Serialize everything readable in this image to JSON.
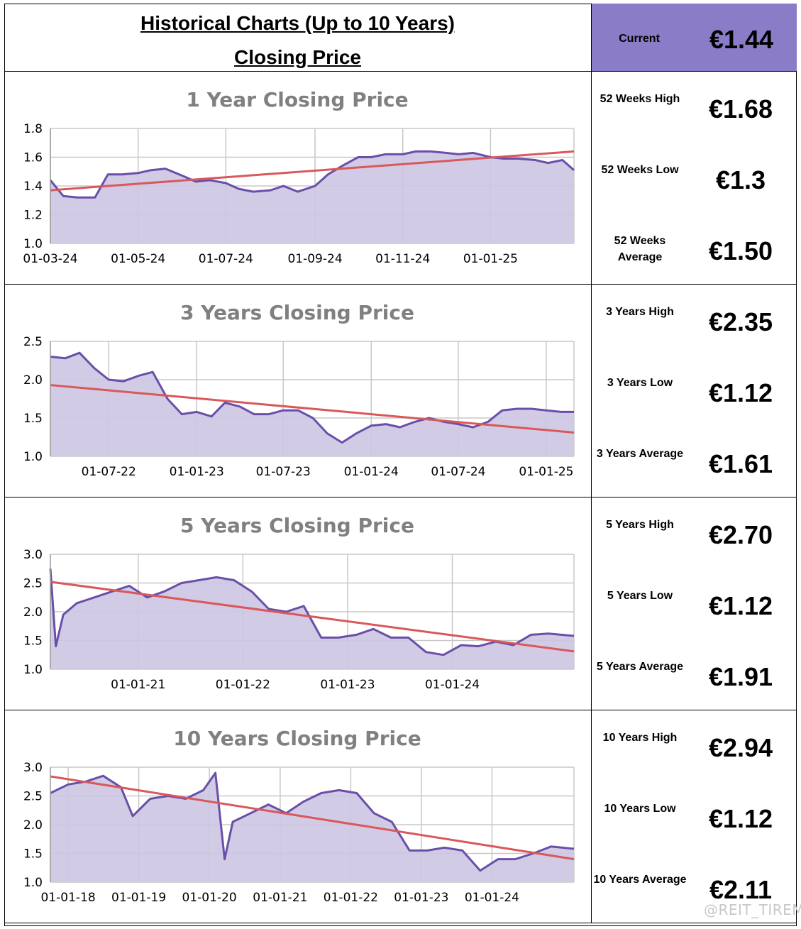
{
  "header": {
    "title": "Historical Charts (Up to 10 Years)",
    "subtitle": "Closing Price",
    "current_label": "Current",
    "current_value": "€1.44",
    "current_bg": "#8b7cc8"
  },
  "sections": [
    {
      "stats": [
        {
          "label": "52 Weeks High",
          "value": "€1.68"
        },
        {
          "label": "52 Weeks Low",
          "value": "€1.3"
        },
        {
          "label": "52 Weeks Average",
          "value": "€1.50"
        }
      ]
    },
    {
      "stats": [
        {
          "label": "3 Years High",
          "value": "€2.35"
        },
        {
          "label": "3 Years Low",
          "value": "€1.12"
        },
        {
          "label": "3 Years Average",
          "value": "€1.61"
        }
      ]
    },
    {
      "stats": [
        {
          "label": "5 Years High",
          "value": "€2.70"
        },
        {
          "label": "5 Years Low",
          "value": "€1.12"
        },
        {
          "label": "5 Years Average",
          "value": "€1.91"
        }
      ]
    },
    {
      "stats": [
        {
          "label": "10 Years High",
          "value": "€2.94"
        },
        {
          "label": "10 Years Low",
          "value": "€1.12"
        },
        {
          "label": "10 Years Average",
          "value": "€2.11"
        }
      ]
    }
  ],
  "watermark": "@REIT_TIREMENT",
  "colors": {
    "line": "#6a4fa8",
    "fill": "#cdc5e3",
    "trend": "#d9585b",
    "grid": "#c8c8c8",
    "title": "#808080"
  },
  "chart_data": [
    {
      "type": "area",
      "title": "1 Year Closing Price",
      "xlim": [
        "2024-03-01",
        "2025-02-28"
      ],
      "ylim": [
        1.0,
        1.8
      ],
      "yticks": [
        1.0,
        1.2,
        1.4,
        1.6,
        1.8
      ],
      "xticks": [
        "01-03-24",
        "01-05-24",
        "01-07-24",
        "01-09-24",
        "01-11-24",
        "01-01-25"
      ],
      "xtick_dates": [
        "2024-03-01",
        "2024-05-01",
        "2024-07-01",
        "2024-09-01",
        "2024-11-01",
        "2025-01-01"
      ],
      "grid": true,
      "series": [
        {
          "x": [
            "2024-03-01",
            "2024-03-10",
            "2024-03-20",
            "2024-04-01",
            "2024-04-10",
            "2024-04-20",
            "2024-05-01",
            "2024-05-10",
            "2024-05-20",
            "2024-06-01",
            "2024-06-10",
            "2024-06-20",
            "2024-07-01",
            "2024-07-10",
            "2024-07-20",
            "2024-08-01",
            "2024-08-10",
            "2024-08-20",
            "2024-09-01",
            "2024-09-10",
            "2024-09-20",
            "2024-10-01",
            "2024-10-10",
            "2024-10-20",
            "2024-11-01",
            "2024-11-10",
            "2024-11-20",
            "2024-12-01",
            "2024-12-10",
            "2024-12-20",
            "2025-01-01",
            "2025-01-10",
            "2025-01-20",
            "2025-02-01",
            "2025-02-10",
            "2025-02-20",
            "2025-02-28"
          ],
          "y": [
            1.44,
            1.33,
            1.32,
            1.32,
            1.48,
            1.48,
            1.49,
            1.51,
            1.52,
            1.47,
            1.43,
            1.44,
            1.42,
            1.38,
            1.36,
            1.37,
            1.4,
            1.36,
            1.4,
            1.48,
            1.54,
            1.6,
            1.6,
            1.62,
            1.62,
            1.64,
            1.64,
            1.63,
            1.62,
            1.63,
            1.6,
            1.59,
            1.59,
            1.58,
            1.56,
            1.58,
            1.51
          ]
        }
      ],
      "trend": {
        "start": 1.37,
        "end": 1.64
      }
    },
    {
      "type": "area",
      "title": "3 Years Closing Price",
      "xlim": [
        "2022-03-01",
        "2025-02-28"
      ],
      "ylim": [
        1.0,
        2.5
      ],
      "yticks": [
        1.0,
        1.5,
        2.0,
        2.5
      ],
      "xticks": [
        "01-07-22",
        "01-01-23",
        "01-07-23",
        "01-01-24",
        "01-07-24",
        "01-01-25"
      ],
      "xtick_dates": [
        "2022-07-01",
        "2023-01-01",
        "2023-07-01",
        "2024-01-01",
        "2024-07-01",
        "2025-01-01"
      ],
      "grid": true,
      "series": [
        {
          "x": [
            "2022-03-01",
            "2022-04-01",
            "2022-05-01",
            "2022-06-01",
            "2022-07-01",
            "2022-08-01",
            "2022-09-01",
            "2022-10-01",
            "2022-11-01",
            "2022-12-01",
            "2023-01-01",
            "2023-02-01",
            "2023-03-01",
            "2023-04-01",
            "2023-05-01",
            "2023-06-01",
            "2023-07-01",
            "2023-08-01",
            "2023-09-01",
            "2023-10-01",
            "2023-11-01",
            "2023-12-01",
            "2024-01-01",
            "2024-02-01",
            "2024-03-01",
            "2024-04-01",
            "2024-05-01",
            "2024-06-01",
            "2024-07-01",
            "2024-08-01",
            "2024-09-01",
            "2024-10-01",
            "2024-11-01",
            "2024-12-01",
            "2025-01-01",
            "2025-02-01",
            "2025-02-28"
          ],
          "y": [
            2.3,
            2.28,
            2.35,
            2.15,
            2.0,
            1.98,
            2.05,
            2.1,
            1.75,
            1.55,
            1.58,
            1.52,
            1.7,
            1.65,
            1.55,
            1.55,
            1.6,
            1.6,
            1.5,
            1.3,
            1.18,
            1.3,
            1.4,
            1.42,
            1.38,
            1.45,
            1.5,
            1.45,
            1.42,
            1.38,
            1.45,
            1.6,
            1.62,
            1.62,
            1.6,
            1.58,
            1.58
          ]
        }
      ],
      "trend": {
        "start": 1.93,
        "end": 1.31
      }
    },
    {
      "type": "area",
      "title": "5 Years Closing Price",
      "xlim": [
        "2020-03-01",
        "2025-02-28"
      ],
      "ylim": [
        1.0,
        3.0
      ],
      "yticks": [
        1.0,
        1.5,
        2.0,
        2.5,
        3.0
      ],
      "xticks": [
        "01-01-21",
        "01-01-22",
        "01-01-23",
        "01-01-24"
      ],
      "xtick_dates": [
        "2021-01-01",
        "2022-01-01",
        "2023-01-01",
        "2024-01-01"
      ],
      "grid": true,
      "series": [
        {
          "x": [
            "2020-03-01",
            "2020-03-20",
            "2020-04-15",
            "2020-06-01",
            "2020-08-01",
            "2020-10-01",
            "2020-12-01",
            "2021-02-01",
            "2021-04-01",
            "2021-06-01",
            "2021-08-01",
            "2021-10-01",
            "2021-12-01",
            "2022-02-01",
            "2022-04-01",
            "2022-06-01",
            "2022-08-01",
            "2022-10-01",
            "2022-12-01",
            "2023-02-01",
            "2023-04-01",
            "2023-06-01",
            "2023-08-01",
            "2023-10-01",
            "2023-12-01",
            "2024-02-01",
            "2024-04-01",
            "2024-06-01",
            "2024-08-01",
            "2024-10-01",
            "2024-12-01",
            "2025-02-28"
          ],
          "y": [
            2.75,
            1.4,
            1.95,
            2.15,
            2.25,
            2.35,
            2.45,
            2.25,
            2.35,
            2.5,
            2.55,
            2.6,
            2.55,
            2.35,
            2.05,
            2.0,
            2.1,
            1.55,
            1.55,
            1.6,
            1.7,
            1.55,
            1.55,
            1.3,
            1.25,
            1.42,
            1.4,
            1.48,
            1.42,
            1.6,
            1.62,
            1.58
          ]
        }
      ],
      "trend": {
        "start": 2.52,
        "end": 1.31
      }
    },
    {
      "type": "area",
      "title": "10 Years Closing Price",
      "xlim": [
        "2017-10-01",
        "2025-02-28"
      ],
      "ylim": [
        1.0,
        3.0
      ],
      "yticks": [
        1.0,
        1.5,
        2.0,
        2.5,
        3.0
      ],
      "xticks": [
        "01-01-18",
        "01-01-19",
        "01-01-20",
        "01-01-21",
        "01-01-22",
        "01-01-23",
        "01-01-24"
      ],
      "xtick_dates": [
        "2018-01-01",
        "2019-01-01",
        "2020-01-01",
        "2021-01-01",
        "2022-01-01",
        "2023-01-01",
        "2024-01-01"
      ],
      "grid": true,
      "series": [
        {
          "x": [
            "2017-10-01",
            "2018-01-01",
            "2018-04-01",
            "2018-07-01",
            "2018-10-01",
            "2018-12-01",
            "2019-03-01",
            "2019-06-01",
            "2019-09-01",
            "2019-12-01",
            "2020-02-01",
            "2020-03-20",
            "2020-05-01",
            "2020-08-01",
            "2020-11-01",
            "2021-02-01",
            "2021-05-01",
            "2021-08-01",
            "2021-11-01",
            "2022-02-01",
            "2022-05-01",
            "2022-08-01",
            "2022-11-01",
            "2023-02-01",
            "2023-05-01",
            "2023-08-01",
            "2023-11-01",
            "2024-02-01",
            "2024-05-01",
            "2024-08-01",
            "2024-11-01",
            "2025-02-28"
          ],
          "y": [
            2.55,
            2.7,
            2.75,
            2.85,
            2.65,
            2.15,
            2.45,
            2.5,
            2.45,
            2.6,
            2.9,
            1.4,
            2.05,
            2.2,
            2.35,
            2.2,
            2.4,
            2.55,
            2.6,
            2.55,
            2.2,
            2.05,
            1.55,
            1.55,
            1.6,
            1.55,
            1.2,
            1.4,
            1.4,
            1.5,
            1.62,
            1.58
          ]
        }
      ],
      "trend": {
        "start": 2.84,
        "end": 1.4
      }
    }
  ]
}
